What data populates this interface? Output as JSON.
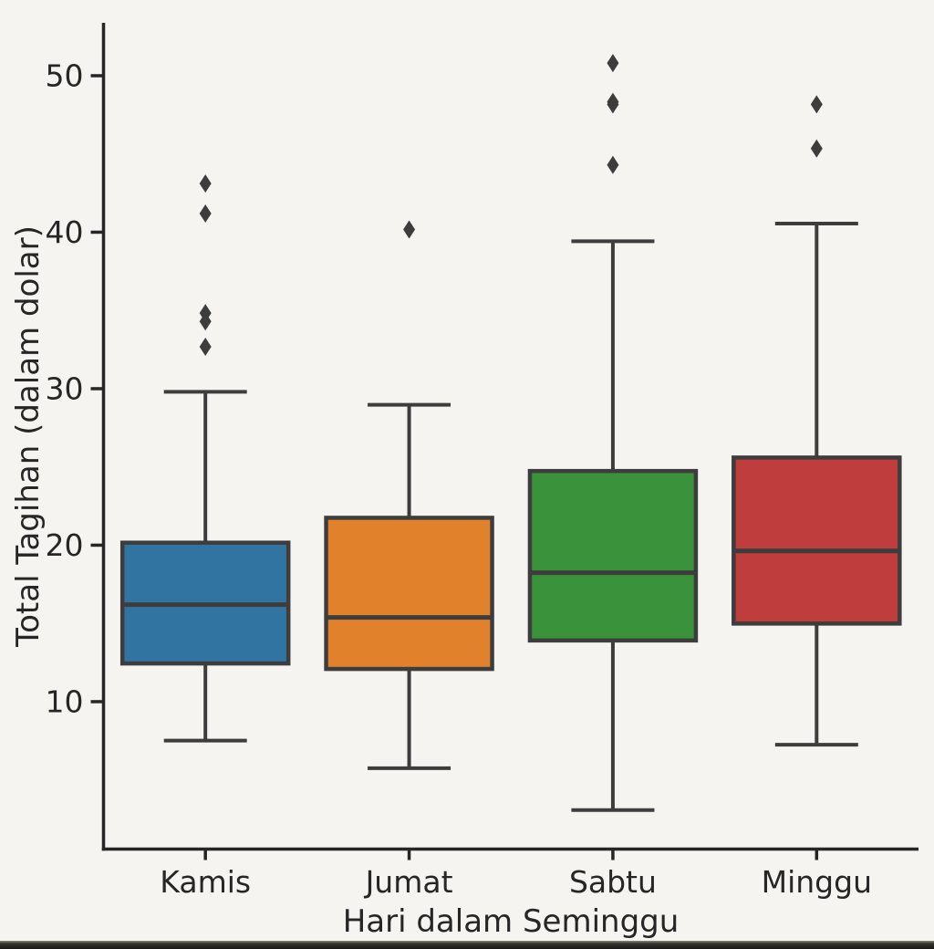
{
  "chart_data": {
    "type": "boxplot",
    "title": "",
    "xlabel": "Hari dalam Seminggu",
    "ylabel": "Total Tagihan (dalam dolar)",
    "categories": [
      "Kamis",
      "Jumat",
      "Sabtu",
      "Minggu"
    ],
    "y_ticks": [
      10,
      20,
      30,
      40,
      50
    ],
    "ylim": [
      0.58,
      53.38
    ],
    "grid": false,
    "legend_position": "none",
    "marker_shape": "diamond",
    "line_color": "#3d3d3d",
    "axis_color": "#262626",
    "series": [
      {
        "name": "Kamis",
        "color": "#3274a1",
        "whisker_low": 7.51,
        "q1": 12.44,
        "median": 16.2,
        "q3": 20.16,
        "whisker_high": 29.8,
        "outliers": [
          32.68,
          34.3,
          34.83,
          41.19,
          43.11
        ]
      },
      {
        "name": "Jumat",
        "color": "#e1812c",
        "whisker_low": 5.75,
        "q1": 12.09,
        "median": 15.38,
        "q3": 21.75,
        "whisker_high": 28.97,
        "outliers": [
          40.17
        ]
      },
      {
        "name": "Sabtu",
        "color": "#3a923a",
        "whisker_low": 3.07,
        "q1": 13.91,
        "median": 18.24,
        "q3": 24.74,
        "whisker_high": 39.42,
        "outliers": [
          44.3,
          48.17,
          48.33,
          50.81
        ]
      },
      {
        "name": "Minggu",
        "color": "#c03d3e",
        "whisker_low": 7.25,
        "q1": 14.99,
        "median": 19.63,
        "q3": 25.6,
        "whisker_high": 40.55,
        "outliers": [
          45.35,
          48.17
        ]
      }
    ]
  }
}
